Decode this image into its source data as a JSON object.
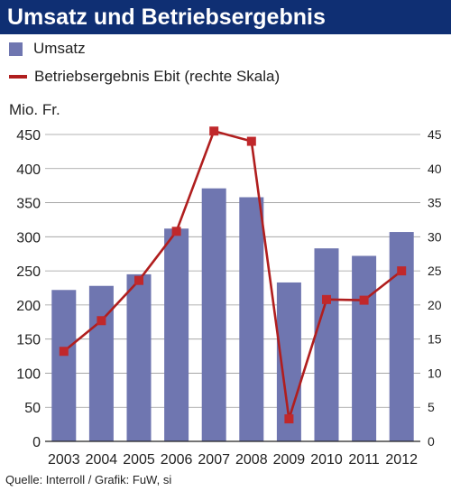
{
  "colors": {
    "title_bg": "#0f2f73",
    "bar": "#6f76b0",
    "line": "#b01e1e",
    "marker": "#c0282b"
  },
  "chart_data": {
    "type": "bar",
    "title": "Umsatz und Betriebsergebnis",
    "unit_label": "Mio. Fr.",
    "legend": {
      "bar_label": "Umsatz",
      "line_label": "Betriebsergebnis Ebit (rechte Skala)"
    },
    "categories": [
      "2003",
      "2004",
      "2005",
      "2006",
      "2007",
      "2008",
      "2009",
      "2010",
      "2011",
      "2012"
    ],
    "series": [
      {
        "name": "Umsatz",
        "type": "bar",
        "axis": "left",
        "values": [
          222,
          228,
          245,
          312,
          371,
          358,
          233,
          283,
          272,
          307
        ]
      },
      {
        "name": "Betriebsergebnis Ebit (rechte Skala)",
        "type": "line",
        "axis": "right",
        "values": [
          13.2,
          17.7,
          23.6,
          30.8,
          45.5,
          44.0,
          3.3,
          20.8,
          20.7,
          25.0
        ]
      }
    ],
    "ylim_left": [
      0,
      450
    ],
    "yticks_left": [
      "0",
      "50",
      "100",
      "150",
      "200",
      "250",
      "300",
      "350",
      "400",
      "450"
    ],
    "ylim_right": [
      0,
      45
    ],
    "yticks_right": [
      "0",
      "5",
      "10",
      "15",
      "20",
      "25",
      "30",
      "35",
      "40",
      "45"
    ],
    "grid": true,
    "source": "Quelle: Interroll / Grafik: FuW, si"
  }
}
